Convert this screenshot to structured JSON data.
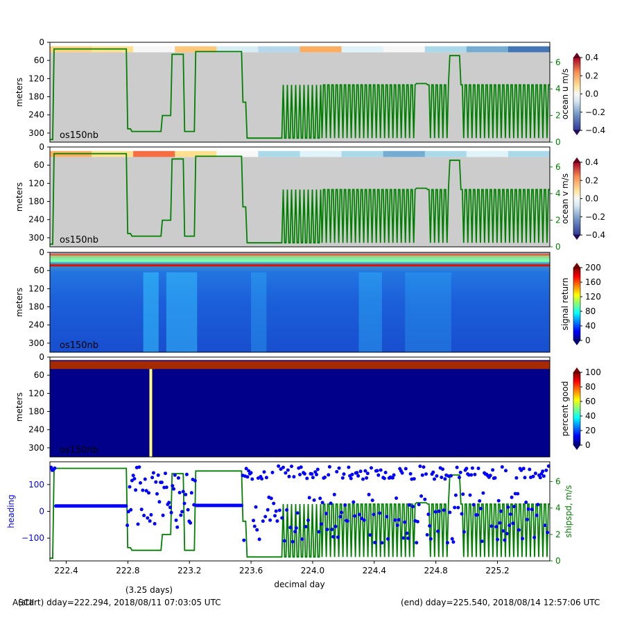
{
  "figure": {
    "ascii_overlap_text": "ASCII",
    "start_label": "(start) dday=222.294,  2018/08/11 07:03:05 UTC",
    "end_label": "(end) dday=225.540,  2018/08/14 12:57:06 UTC",
    "duration_label": "(3.25 days)",
    "xlabel": "decimal day"
  },
  "colors": {
    "speed_line": "#008000",
    "heading_dots": "#0000ff",
    "missing_gray": "#cccccc",
    "axis_frame": "#000000"
  },
  "chart_data": [
    {
      "type": "heatmap",
      "panel": "ocean u",
      "ylabel": "meters",
      "yticks": [
        "0",
        "60",
        "120",
        "180",
        "240",
        "300"
      ],
      "ylim": [
        330,
        0
      ],
      "xlim": [
        222.294,
        225.54
      ],
      "label": "os150nb",
      "colorbar": {
        "label": "ocean u m/s",
        "ticks": [
          "0.4",
          "0.2",
          "0.0",
          "−0.2",
          "−0.4"
        ],
        "range": [
          -0.4,
          0.4
        ],
        "cmap": "RdYlBu_r"
      },
      "overlay_axis": {
        "label": "",
        "ticks": [
          "6",
          "4",
          "2",
          "0"
        ],
        "range": [
          0,
          7.5
        ]
      }
    },
    {
      "type": "heatmap",
      "panel": "ocean v",
      "ylabel": "meters",
      "yticks": [
        "0",
        "60",
        "120",
        "180",
        "240",
        "300"
      ],
      "ylim": [
        330,
        0
      ],
      "xlim": [
        222.294,
        225.54
      ],
      "label": "os150nb",
      "colorbar": {
        "label": "ocean v m/s",
        "ticks": [
          "0.4",
          "0.2",
          "0.0",
          "−0.2",
          "−0.4"
        ],
        "range": [
          -0.4,
          0.4
        ],
        "cmap": "RdYlBu_r"
      },
      "overlay_axis": {
        "label": "",
        "ticks": [
          "6",
          "4",
          "2",
          "0"
        ],
        "range": [
          0,
          7.5
        ]
      }
    },
    {
      "type": "heatmap",
      "panel": "signal return",
      "ylabel": "meters",
      "yticks": [
        "0",
        "60",
        "120",
        "180",
        "240",
        "300"
      ],
      "ylim": [
        330,
        0
      ],
      "xlim": [
        222.294,
        225.54
      ],
      "label": "os150nb",
      "colorbar": {
        "label": "signal return",
        "ticks": [
          "200",
          "160",
          "120",
          "80",
          "40",
          "0"
        ],
        "range": [
          0,
          200
        ],
        "cmap": "jet"
      }
    },
    {
      "type": "heatmap",
      "panel": "percent good",
      "ylabel": "meters",
      "yticks": [
        "0",
        "60",
        "120",
        "180",
        "240",
        "300"
      ],
      "ylim": [
        330,
        0
      ],
      "xlim": [
        222.294,
        225.54
      ],
      "label": "os150nb",
      "colorbar": {
        "label": "percent good",
        "ticks": [
          "100",
          "80",
          "60",
          "40",
          "20",
          "0"
        ],
        "range": [
          0,
          100
        ],
        "cmap": "jet"
      }
    },
    {
      "type": "scatter",
      "panel": "heading and ship speed",
      "ylabel": "heading",
      "yticks": [
        "100",
        "0",
        "−100"
      ],
      "ylim": [
        -185,
        185
      ],
      "xlim": [
        222.294,
        225.54
      ],
      "xlabel": "decimal day",
      "xticks": [
        "222.4",
        "222.8",
        "223.2",
        "223.6",
        "224.0",
        "224.4",
        "224.8",
        "225.2"
      ],
      "right_axis": {
        "label": "shipspd, m/s",
        "ticks": [
          "6",
          "4",
          "2",
          "0"
        ],
        "range": [
          0,
          7.5
        ]
      },
      "series": [
        {
          "name": "heading",
          "color": "#0000ff"
        },
        {
          "name": "shipspd",
          "color": "#008000"
        }
      ]
    }
  ]
}
